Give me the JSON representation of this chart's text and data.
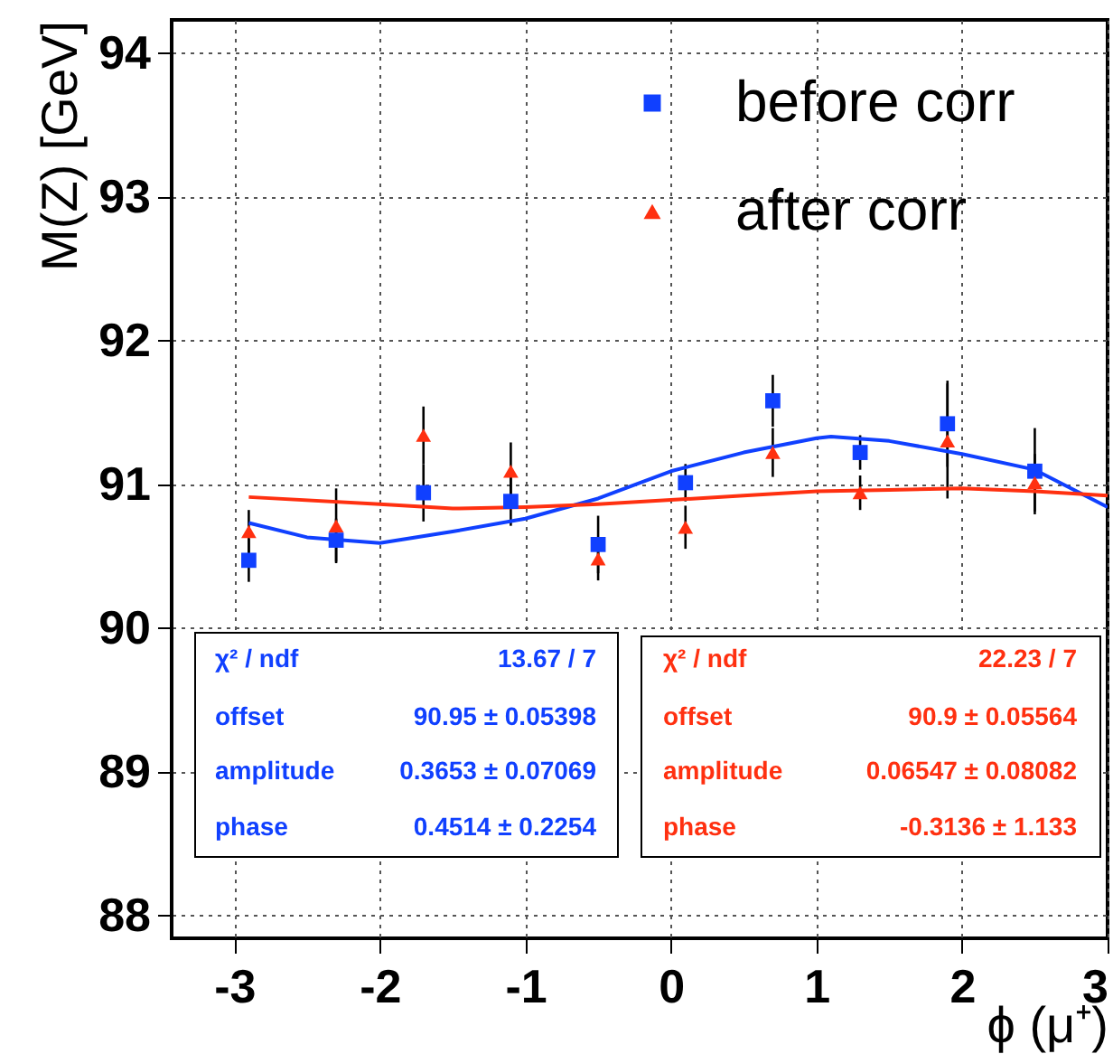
{
  "chart_data": {
    "type": "scatter",
    "xlabel": "ϕ (μ⁺)",
    "ylabel": "M(Z)  [GeV]",
    "xlim": [
      -3.43,
      3.0
    ],
    "ylim": [
      87.84,
      94.23
    ],
    "xticks": [
      -3,
      -2,
      -1,
      0,
      1,
      2,
      3
    ],
    "yticks": [
      88,
      89,
      90,
      91,
      92,
      93,
      94
    ],
    "grid": true,
    "legend": "top right",
    "series": [
      {
        "name": "before corr",
        "type": "scatter",
        "marker": "square",
        "color": "#1040ff",
        "x": [
          -2.9,
          -2.3,
          -1.7,
          -1.1,
          -0.5,
          0.1,
          0.7,
          1.3,
          1.9,
          2.5
        ],
        "values": [
          90.47,
          90.61,
          90.94,
          90.88,
          90.58,
          91.01,
          91.58,
          91.22,
          91.42,
          91.09
        ],
        "errors": [
          0.15,
          0.15,
          0.2,
          0.17,
          0.2,
          0.13,
          0.18,
          0.12,
          0.3,
          0.3
        ]
      },
      {
        "name": "after corr",
        "type": "scatter",
        "marker": "triangle",
        "color": "#ff3010",
        "x": [
          -2.9,
          -2.3,
          -1.7,
          -1.1,
          -0.5,
          0.1,
          0.7,
          1.3,
          1.9,
          2.5
        ],
        "values": [
          90.67,
          90.71,
          91.34,
          91.09,
          90.48,
          90.7,
          91.22,
          90.94,
          91.3,
          91.01
        ],
        "errors": [
          0.15,
          0.26,
          0.2,
          0.2,
          0.15,
          0.15,
          0.17,
          0.12,
          0.4,
          0.2
        ]
      },
      {
        "type": "line",
        "color": "#1040ff",
        "x": [
          -2.9,
          -2.5,
          -2.0,
          -1.5,
          -1.0,
          -0.5,
          0.0,
          0.5,
          1.0,
          1.1,
          1.5,
          2.0,
          2.5,
          3.0
        ],
        "values": [
          90.73,
          90.63,
          90.59,
          90.67,
          90.76,
          90.9,
          91.09,
          91.22,
          91.32,
          91.33,
          91.3,
          91.21,
          91.1,
          90.84
        ]
      },
      {
        "type": "line",
        "color": "#ff3010",
        "x": [
          -2.9,
          -2.0,
          -1.5,
          -1.0,
          -0.5,
          0.0,
          0.5,
          1.0,
          1.5,
          2.0,
          2.5,
          3.0
        ],
        "values": [
          90.91,
          90.86,
          90.83,
          90.84,
          90.86,
          90.89,
          90.92,
          90.95,
          90.96,
          90.97,
          90.95,
          90.92
        ]
      }
    ],
    "annotations": [
      "χ² / ndf",
      "13.67 / 7",
      "offset",
      "90.95 ± 0.05398",
      "amplitude",
      "0.3653 ± 0.07069",
      "phase",
      "0.4514 ± 0.2254",
      "χ² / ndf",
      "22.23 / 7",
      "offset",
      "90.9 ± 0.05564",
      "amplitude",
      "0.06547 ± 0.08082",
      "phase",
      "-0.3136 ± 1.133"
    ]
  }
}
